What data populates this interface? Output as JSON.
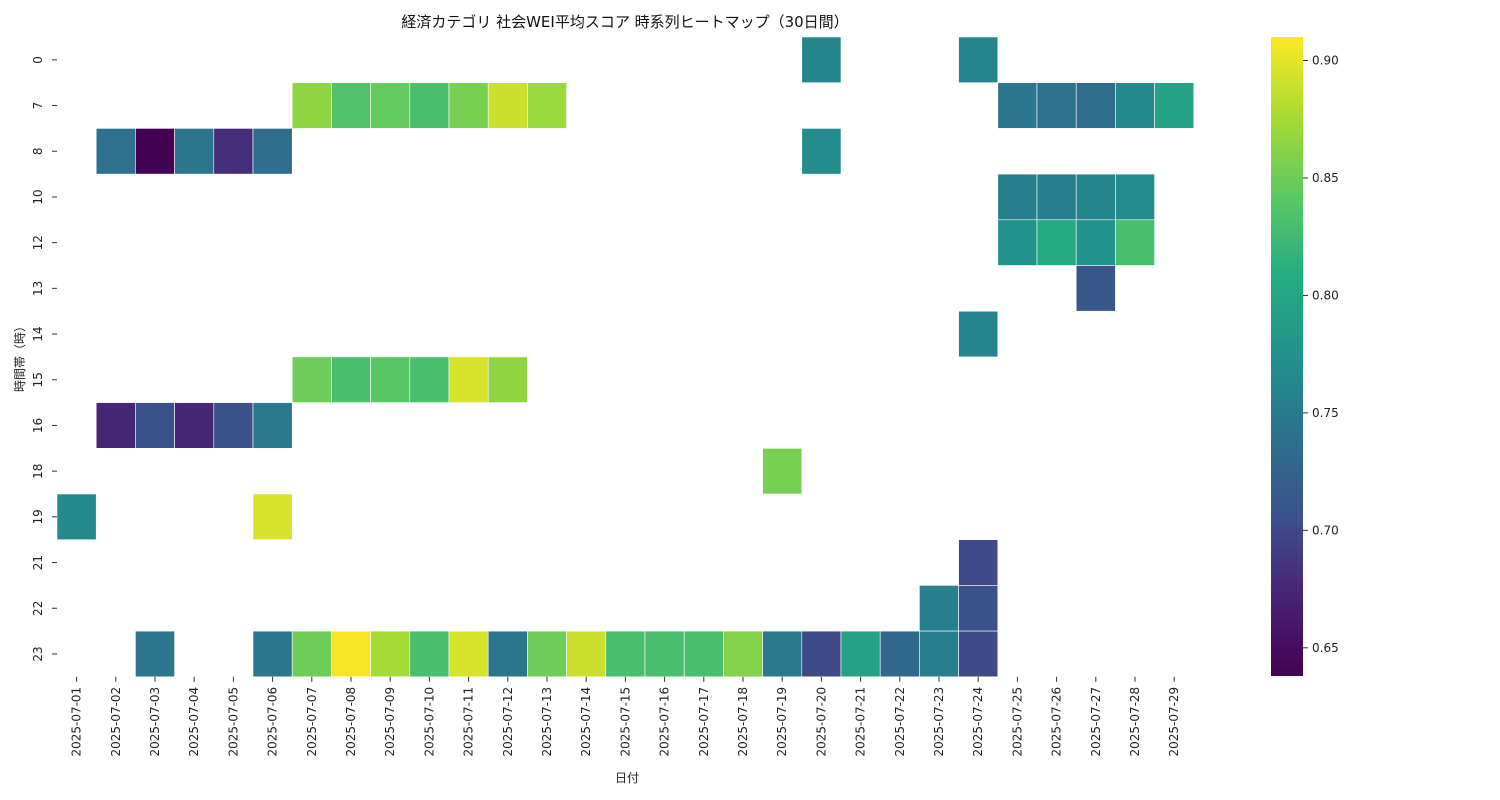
{
  "chart_data": {
    "type": "heatmap",
    "title": "経済カテゴリ 社会WEI平均スコア 時系列ヒートマップ（30日間）",
    "xlabel": "日付",
    "ylabel": "時間帯（時）",
    "x": [
      "2025-07-01",
      "2025-07-02",
      "2025-07-03",
      "2025-07-04",
      "2025-07-05",
      "2025-07-06",
      "2025-07-07",
      "2025-07-08",
      "2025-07-09",
      "2025-07-10",
      "2025-07-11",
      "2025-07-12",
      "2025-07-13",
      "2025-07-14",
      "2025-07-15",
      "2025-07-16",
      "2025-07-17",
      "2025-07-18",
      "2025-07-19",
      "2025-07-20",
      "2025-07-21",
      "2025-07-22",
      "2025-07-23",
      "2025-07-24",
      "2025-07-25",
      "2025-07-26",
      "2025-07-27",
      "2025-07-28",
      "2025-07-29"
    ],
    "y": [
      "0",
      "7",
      "8",
      "10",
      "12",
      "13",
      "14",
      "15",
      "16",
      "18",
      "19",
      "21",
      "22",
      "23"
    ],
    "values": [
      [
        null,
        null,
        null,
        null,
        null,
        null,
        null,
        null,
        null,
        null,
        null,
        null,
        null,
        null,
        null,
        null,
        null,
        null,
        null,
        0.762,
        null,
        null,
        null,
        0.76,
        null,
        null,
        null,
        null,
        null
      ],
      [
        null,
        null,
        null,
        null,
        null,
        null,
        0.865,
        0.835,
        0.845,
        0.83,
        0.855,
        0.89,
        0.87,
        null,
        null,
        null,
        null,
        null,
        null,
        null,
        null,
        null,
        null,
        null,
        0.745,
        0.74,
        0.735,
        0.765,
        0.795
      ],
      [
        null,
        0.74,
        0.638,
        0.745,
        0.68,
        0.735,
        null,
        null,
        null,
        null,
        null,
        null,
        null,
        null,
        null,
        null,
        null,
        null,
        null,
        0.77,
        null,
        null,
        null,
        null,
        null,
        null,
        null,
        null,
        null
      ],
      [
        null,
        null,
        null,
        null,
        null,
        null,
        null,
        null,
        null,
        null,
        null,
        null,
        null,
        null,
        null,
        null,
        null,
        null,
        null,
        null,
        null,
        null,
        null,
        null,
        0.755,
        0.755,
        0.76,
        0.77,
        null
      ],
      [
        null,
        null,
        null,
        null,
        null,
        null,
        null,
        null,
        null,
        null,
        null,
        null,
        null,
        null,
        null,
        null,
        null,
        null,
        null,
        null,
        null,
        null,
        null,
        null,
        0.775,
        0.805,
        0.775,
        0.83,
        null
      ],
      [
        null,
        null,
        null,
        null,
        null,
        null,
        null,
        null,
        null,
        null,
        null,
        null,
        null,
        null,
        null,
        null,
        null,
        null,
        null,
        null,
        null,
        null,
        null,
        null,
        null,
        null,
        0.71,
        null,
        null
      ],
      [
        null,
        null,
        null,
        null,
        null,
        null,
        null,
        null,
        null,
        null,
        null,
        null,
        null,
        null,
        null,
        null,
        null,
        null,
        null,
        null,
        null,
        null,
        null,
        0.76,
        null,
        null,
        null,
        null,
        null
      ],
      [
        null,
        null,
        null,
        null,
        null,
        null,
        0.85,
        0.83,
        0.84,
        0.83,
        0.895,
        0.865,
        null,
        null,
        null,
        null,
        null,
        null,
        null,
        null,
        null,
        null,
        null,
        null,
        null,
        null,
        null,
        null,
        null
      ],
      [
        null,
        0.675,
        0.705,
        0.675,
        0.705,
        0.75,
        null,
        null,
        null,
        null,
        null,
        null,
        null,
        null,
        null,
        null,
        null,
        null,
        null,
        null,
        null,
        null,
        null,
        null,
        null,
        null,
        null,
        null,
        null
      ],
      [
        null,
        null,
        null,
        null,
        null,
        null,
        null,
        null,
        null,
        null,
        null,
        null,
        null,
        null,
        null,
        null,
        null,
        null,
        0.855,
        null,
        null,
        null,
        null,
        null,
        null,
        null,
        null,
        null,
        null
      ],
      [
        0.765,
        null,
        null,
        null,
        null,
        0.895,
        null,
        null,
        null,
        null,
        null,
        null,
        null,
        null,
        null,
        null,
        null,
        null,
        null,
        null,
        null,
        null,
        null,
        null,
        null,
        null,
        null,
        null,
        null
      ],
      [
        null,
        null,
        null,
        null,
        null,
        null,
        null,
        null,
        null,
        null,
        null,
        null,
        null,
        null,
        null,
        null,
        null,
        null,
        null,
        null,
        null,
        null,
        null,
        0.7,
        null,
        null,
        null,
        null,
        null
      ],
      [
        null,
        null,
        null,
        null,
        null,
        null,
        null,
        null,
        null,
        null,
        null,
        null,
        null,
        null,
        null,
        null,
        null,
        null,
        null,
        null,
        null,
        null,
        0.755,
        0.705,
        null,
        null,
        null,
        null,
        null
      ],
      [
        null,
        null,
        0.745,
        null,
        null,
        0.745,
        0.85,
        0.908,
        0.875,
        0.83,
        0.895,
        0.745,
        0.85,
        0.89,
        0.83,
        0.83,
        0.83,
        0.86,
        0.75,
        0.7,
        0.795,
        0.73,
        0.755,
        0.7,
        null,
        null,
        null,
        null,
        null
      ]
    ],
    "colormap": "viridis",
    "vmin": 0.638,
    "vmax": 0.91,
    "colorbar_ticks": [
      "0.65",
      "0.70",
      "0.75",
      "0.80",
      "0.85",
      "0.90"
    ],
    "grid": false,
    "legend": "right colorbar"
  }
}
